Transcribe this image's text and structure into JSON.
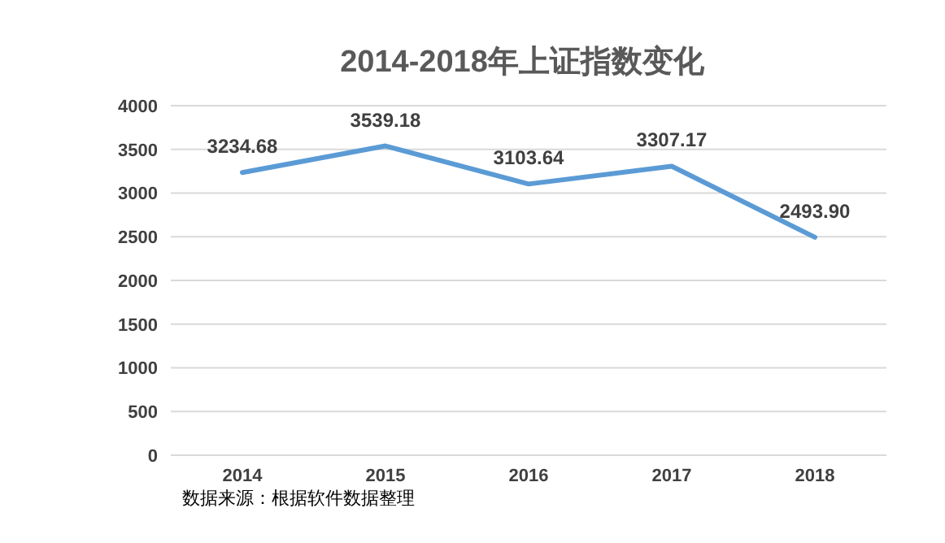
{
  "chart_data": {
    "type": "line",
    "title": "2014-2018年上证指数变化",
    "categories": [
      "2014",
      "2015",
      "2016",
      "2017",
      "2018"
    ],
    "series": [
      {
        "color": "#5b9bd5",
        "values": [
          3234.68,
          3539.18,
          3103.64,
          3307.17,
          2493.9
        ],
        "value_labels": [
          "3234.68",
          "3539.18",
          "3103.64",
          "3307.17",
          "2493.90"
        ]
      }
    ],
    "ylim": [
      0,
      4000
    ],
    "yticks": [
      0,
      500,
      1000,
      1500,
      2000,
      2500,
      3000,
      3500,
      4000
    ],
    "grid": "y",
    "marker": "none",
    "line_style": "solid",
    "annotations": [
      "数据来源：根据软件数据整理"
    ]
  }
}
